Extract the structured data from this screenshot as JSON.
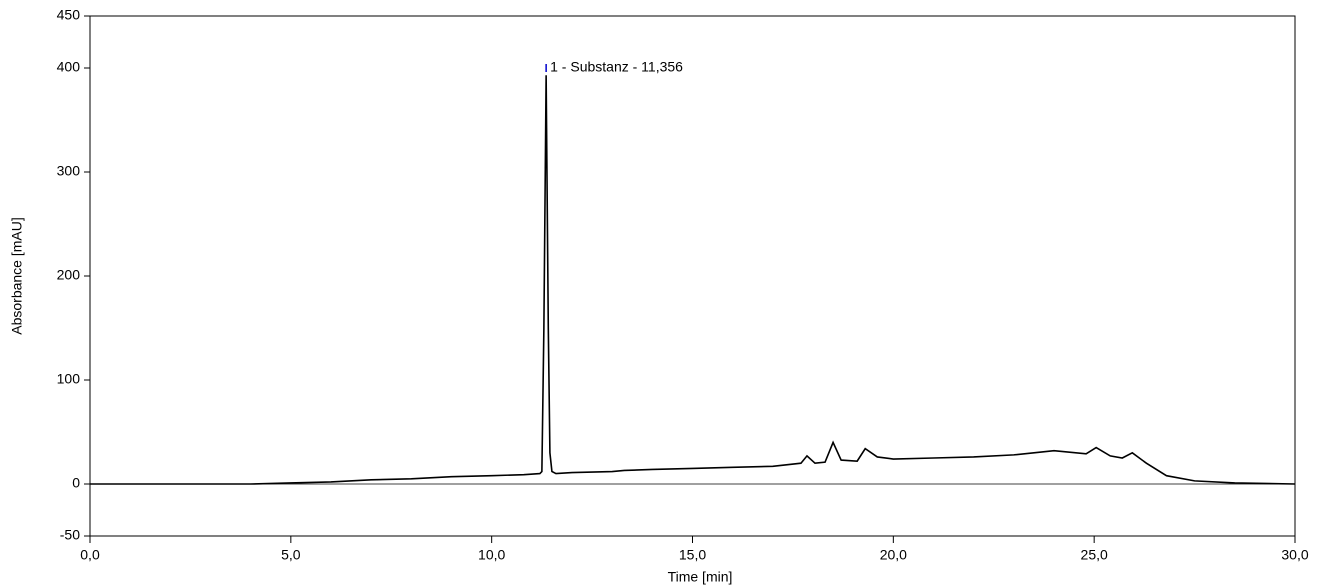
{
  "chart_data": {
    "type": "line",
    "x_label": "Time [min]",
    "y_label": "Absorbance [mAU]",
    "x": [
      0,
      1,
      2,
      3,
      4,
      5,
      6,
      7,
      8,
      9,
      10,
      10.8,
      11.2,
      11.25,
      11.3,
      11.356,
      11.41,
      11.45,
      11.5,
      11.6,
      12,
      13,
      13.3,
      14,
      15,
      16,
      17,
      17.7,
      17.85,
      18.05,
      18.3,
      18.5,
      18.7,
      19.1,
      19.3,
      19.6,
      20,
      21,
      22,
      23,
      23.5,
      24,
      24.8,
      25.05,
      25.4,
      25.7,
      25.95,
      26.3,
      26.8,
      27.5,
      28.5,
      30
    ],
    "values": [
      0,
      0,
      0,
      0,
      0,
      1,
      2,
      4,
      5,
      7,
      8,
      9,
      10,
      12,
      150,
      393,
      150,
      30,
      12,
      10,
      11,
      12,
      13,
      14,
      15,
      16,
      17,
      20,
      27,
      20,
      21,
      40,
      23,
      22,
      34,
      26,
      24,
      25,
      26,
      28,
      30,
      32,
      29,
      35,
      27,
      25,
      30,
      20,
      8,
      3,
      1,
      0
    ],
    "color": "#000000",
    "xlim": [
      0,
      30
    ],
    "xticks": [
      {
        "value": 0,
        "label": "0,0"
      },
      {
        "value": 5,
        "label": "5,0"
      },
      {
        "value": 10,
        "label": "10,0"
      },
      {
        "value": 15,
        "label": "15,0"
      },
      {
        "value": 20,
        "label": "20,0"
      },
      {
        "value": 25,
        "label": "25,0"
      },
      {
        "value": 30,
        "label": "30,0"
      }
    ],
    "ylim": [
      -50,
      450
    ],
    "yticks": [
      -50,
      0,
      100,
      200,
      300,
      400,
      450
    ],
    "annotations": [
      {
        "text": "1 - Substanz - 11,356",
        "x": 11.356,
        "y": 400
      }
    ]
  }
}
